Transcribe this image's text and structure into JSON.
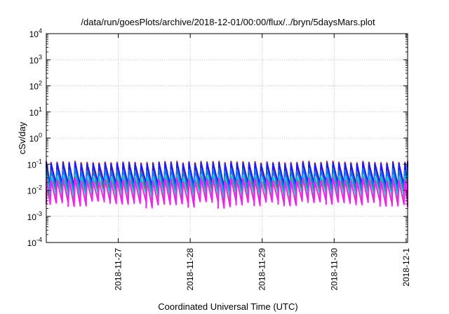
{
  "chart_data": {
    "type": "line",
    "title": "/data/run/goesPlots/archive/2018-12-01/00:00/flux/../bryn/5daysMars.plot",
    "xlabel": "Coordinated Universal Time (UTC)",
    "ylabel": "cSv/day",
    "yscale": "log",
    "ylim": [
      0.0001,
      10000
    ],
    "y_ticks": [
      {
        "value": 0.0001,
        "base": "10",
        "exp": "-4"
      },
      {
        "value": 0.001,
        "base": "10",
        "exp": "-3"
      },
      {
        "value": 0.01,
        "base": "10",
        "exp": "-2"
      },
      {
        "value": 0.1,
        "base": "10",
        "exp": "-1"
      },
      {
        "value": 1,
        "base": "10",
        "exp": "0"
      },
      {
        "value": 10,
        "base": "10",
        "exp": "1"
      },
      {
        "value": 100,
        "base": "10",
        "exp": "2"
      },
      {
        "value": 1000,
        "base": "10",
        "exp": "3"
      },
      {
        "value": 10000,
        "base": "10",
        "exp": "4"
      }
    ],
    "xlim": [
      "2018-11-26T00:00",
      "2018-12-01T00:30"
    ],
    "x_ticks": [
      "2018-11-27",
      "2018-11-28",
      "2018-11-29",
      "2018-11-30",
      "2018-12-1"
    ],
    "grid": true,
    "sawtooth_period_hours": 2.0,
    "series": [
      {
        "color": "#cc2222",
        "peak_range": [
          0.11,
          0.13
        ],
        "trough_range": [
          0.004,
          0.007
        ]
      },
      {
        "color": "#1a1aff",
        "peak_range": [
          0.1,
          0.12
        ],
        "trough_range": [
          0.012,
          0.02
        ]
      },
      {
        "color": "#1177ee",
        "peak_range": [
          0.05,
          0.07
        ],
        "trough_range": [
          0.008,
          0.014
        ]
      },
      {
        "color": "#22bbbb",
        "peak_range": [
          0.03,
          0.04
        ],
        "trough_range": [
          0.005,
          0.008
        ]
      },
      {
        "color": "#ee22ee",
        "peak_range": [
          0.02,
          0.03
        ],
        "trough_range": [
          0.002,
          0.004
        ]
      }
    ]
  }
}
